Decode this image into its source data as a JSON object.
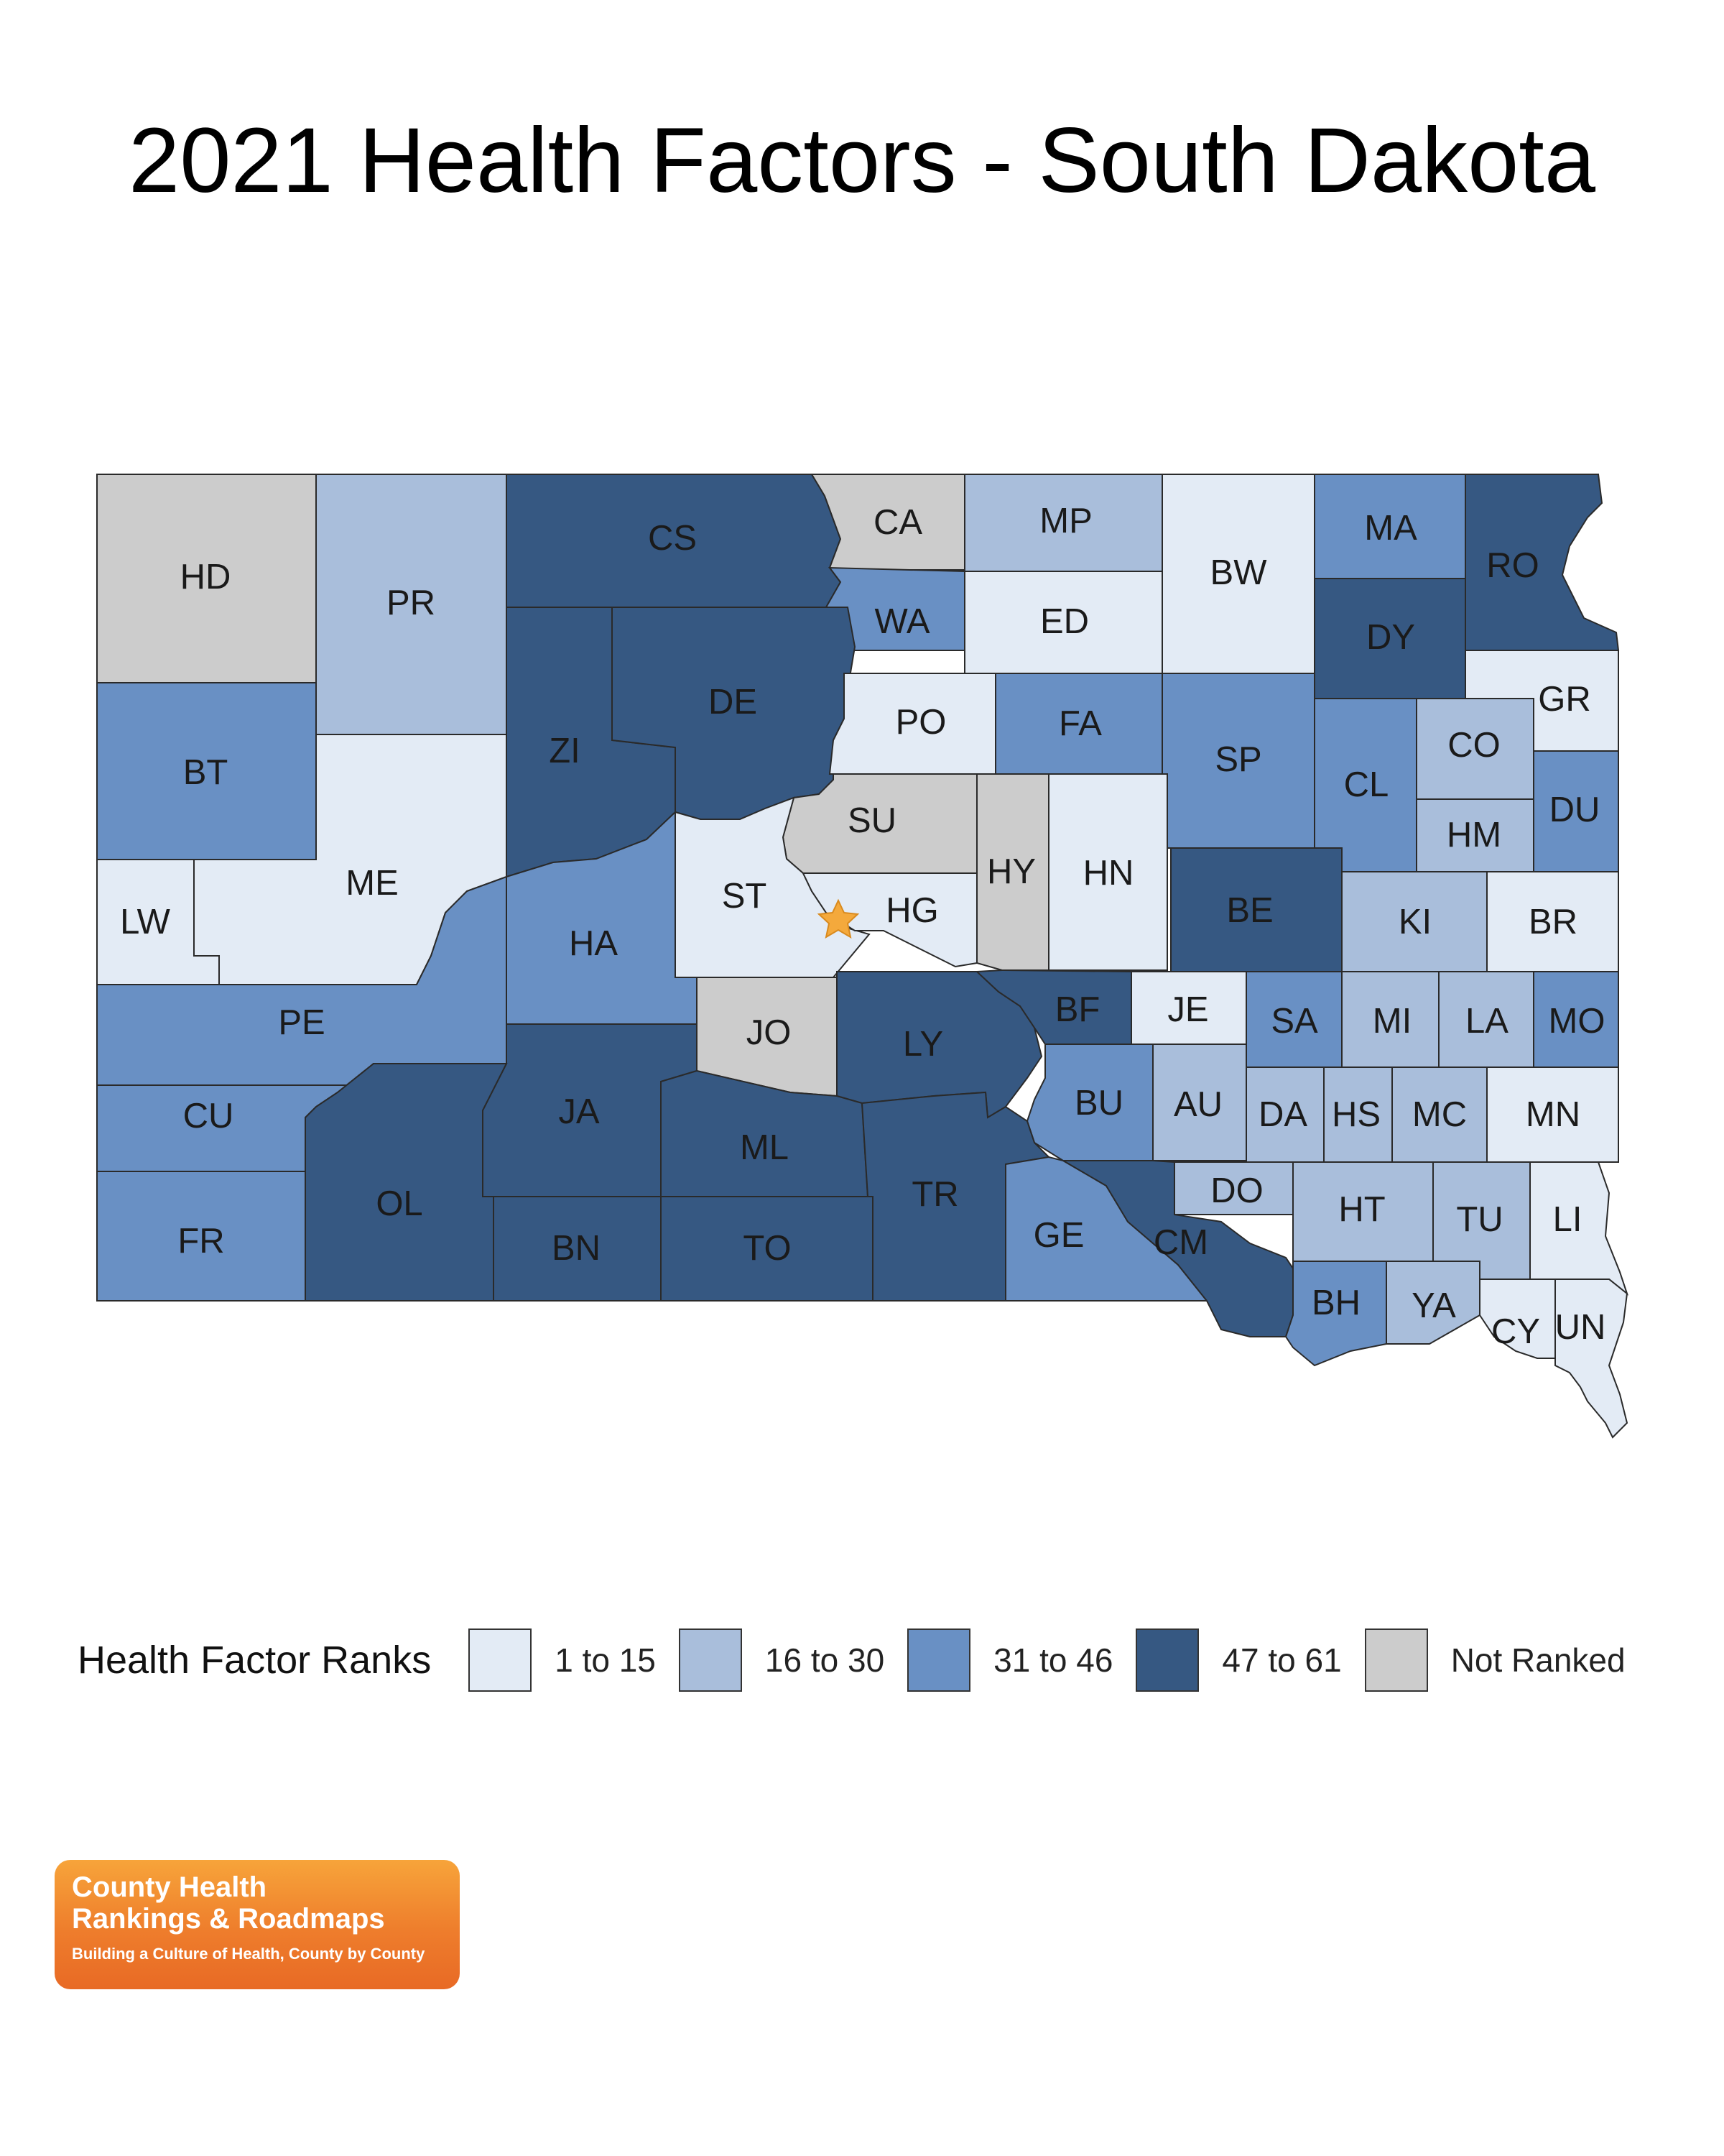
{
  "title": "2021 Health Factors - South Dakota",
  "legend": {
    "title": "Health Factor Ranks",
    "items": [
      {
        "label": "1 to 15",
        "color": "#e3ebf5"
      },
      {
        "label": "16 to 30",
        "color": "#a9bedb"
      },
      {
        "label": "31 to 46",
        "color": "#6990c4"
      },
      {
        "label": "47 to 61",
        "color": "#365882"
      },
      {
        "label": "Not Ranked",
        "color": "#cccccc"
      }
    ]
  },
  "counties": [
    {
      "id": "HD",
      "label": "HD",
      "rank_group": 4
    },
    {
      "id": "PR",
      "label": "PR",
      "rank_group": 1
    },
    {
      "id": "CS",
      "label": "CS",
      "rank_group": 3
    },
    {
      "id": "CA",
      "label": "CA",
      "rank_group": 4
    },
    {
      "id": "MP",
      "label": "MP",
      "rank_group": 1
    },
    {
      "id": "BW",
      "label": "BW",
      "rank_group": 0
    },
    {
      "id": "MA",
      "label": "MA",
      "rank_group": 2
    },
    {
      "id": "RO",
      "label": "RO",
      "rank_group": 3
    },
    {
      "id": "WA",
      "label": "WA",
      "rank_group": 2
    },
    {
      "id": "ED",
      "label": "ED",
      "rank_group": 0
    },
    {
      "id": "DY",
      "label": "DY",
      "rank_group": 3
    },
    {
      "id": "GR",
      "label": "GR",
      "rank_group": 0
    },
    {
      "id": "BT",
      "label": "BT",
      "rank_group": 2
    },
    {
      "id": "ZI",
      "label": "ZI",
      "rank_group": 3
    },
    {
      "id": "DE",
      "label": "DE",
      "rank_group": 3
    },
    {
      "id": "PO",
      "label": "PO",
      "rank_group": 0
    },
    {
      "id": "FA",
      "label": "FA",
      "rank_group": 2
    },
    {
      "id": "SP",
      "label": "SP",
      "rank_group": 2
    },
    {
      "id": "CL",
      "label": "CL",
      "rank_group": 2
    },
    {
      "id": "CO",
      "label": "CO",
      "rank_group": 1
    },
    {
      "id": "DU",
      "label": "DU",
      "rank_group": 2
    },
    {
      "id": "HM",
      "label": "HM",
      "rank_group": 1
    },
    {
      "id": "ME",
      "label": "ME",
      "rank_group": 0
    },
    {
      "id": "LW",
      "label": "LW",
      "rank_group": 0
    },
    {
      "id": "SU",
      "label": "SU",
      "rank_group": 4
    },
    {
      "id": "HY",
      "label": "HY",
      "rank_group": 4
    },
    {
      "id": "HN",
      "label": "HN",
      "rank_group": 0
    },
    {
      "id": "ST",
      "label": "ST",
      "rank_group": 0
    },
    {
      "id": "HG",
      "label": "HG",
      "rank_group": 0
    },
    {
      "id": "HA",
      "label": "HA",
      "rank_group": 2
    },
    {
      "id": "BE",
      "label": "BE",
      "rank_group": 3
    },
    {
      "id": "KI",
      "label": "KI",
      "rank_group": 1
    },
    {
      "id": "BR",
      "label": "BR",
      "rank_group": 0
    },
    {
      "id": "PE",
      "label": "PE",
      "rank_group": 2
    },
    {
      "id": "JO",
      "label": "JO",
      "rank_group": 4
    },
    {
      "id": "LY",
      "label": "LY",
      "rank_group": 3
    },
    {
      "id": "BF",
      "label": "BF",
      "rank_group": 3
    },
    {
      "id": "JE",
      "label": "JE",
      "rank_group": 0
    },
    {
      "id": "SA",
      "label": "SA",
      "rank_group": 2
    },
    {
      "id": "MI",
      "label": "MI",
      "rank_group": 1
    },
    {
      "id": "LA",
      "label": "LA",
      "rank_group": 1
    },
    {
      "id": "MO",
      "label": "MO",
      "rank_group": 2
    },
    {
      "id": "CU",
      "label": "CU",
      "rank_group": 2
    },
    {
      "id": "JA",
      "label": "JA",
      "rank_group": 3
    },
    {
      "id": "ML",
      "label": "ML",
      "rank_group": 3
    },
    {
      "id": "BU",
      "label": "BU",
      "rank_group": 2
    },
    {
      "id": "AU",
      "label": "AU",
      "rank_group": 1
    },
    {
      "id": "DA",
      "label": "DA",
      "rank_group": 1
    },
    {
      "id": "HS",
      "label": "HS",
      "rank_group": 1
    },
    {
      "id": "MC",
      "label": "MC",
      "rank_group": 1
    },
    {
      "id": "MN",
      "label": "MN",
      "rank_group": 0
    },
    {
      "id": "OL",
      "label": "OL",
      "rank_group": 3
    },
    {
      "id": "TR",
      "label": "TR",
      "rank_group": 3
    },
    {
      "id": "DO",
      "label": "DO",
      "rank_group": 1
    },
    {
      "id": "HT",
      "label": "HT",
      "rank_group": 1
    },
    {
      "id": "TU",
      "label": "TU",
      "rank_group": 1
    },
    {
      "id": "LI",
      "label": "LI",
      "rank_group": 0
    },
    {
      "id": "FR",
      "label": "FR",
      "rank_group": 2
    },
    {
      "id": "BN",
      "label": "BN",
      "rank_group": 3
    },
    {
      "id": "TO",
      "label": "TO",
      "rank_group": 3
    },
    {
      "id": "GE",
      "label": "GE",
      "rank_group": 2
    },
    {
      "id": "CM",
      "label": "CM",
      "rank_group": 3
    },
    {
      "id": "BH",
      "label": "BH",
      "rank_group": 2
    },
    {
      "id": "YA",
      "label": "YA",
      "rank_group": 1
    },
    {
      "id": "CY",
      "label": "CY",
      "rank_group": 0
    },
    {
      "id": "UN",
      "label": "UN",
      "rank_group": 0
    }
  ],
  "capital_marker": {
    "icon": "star-icon",
    "color": "#f4a93c"
  },
  "logo": {
    "line1": "County Health",
    "line2": "Rankings & Roadmaps",
    "tagline": "Building a Culture of Health, County by County"
  }
}
